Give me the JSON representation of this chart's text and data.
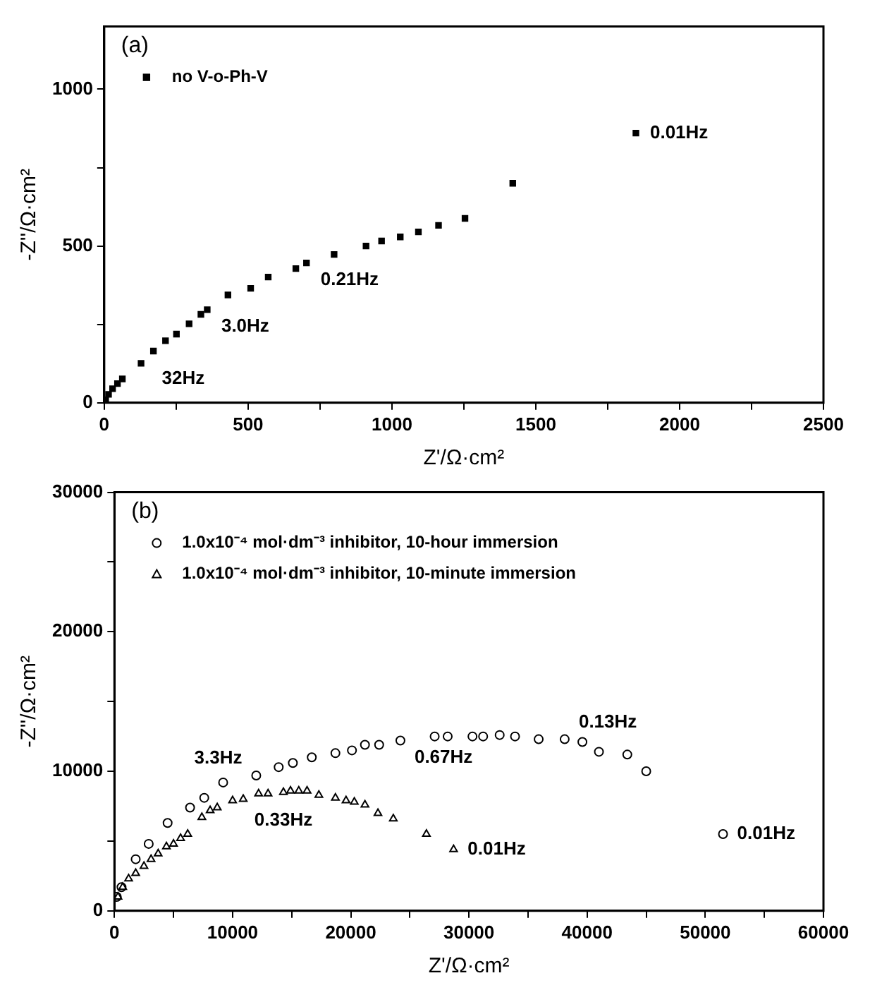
{
  "chart_data": [
    {
      "type": "scatter",
      "xlabel": "Z'/Ω·cm²",
      "ylabel": "-Z''/Ω·cm²",
      "xlim": [
        0,
        2500
      ],
      "ylim": [
        0,
        1200
      ],
      "xticks": [
        0,
        {
          "value": 250,
          "label": null
        },
        500,
        {
          "value": 750,
          "label": null
        },
        1000,
        {
          "value": 1250,
          "label": null
        },
        1500,
        {
          "value": 1750,
          "label": null
        },
        2000,
        {
          "value": 2250,
          "label": null
        },
        2500
      ],
      "yticks": [
        0,
        {
          "value": 250,
          "label": null
        },
        500,
        {
          "value": 750,
          "label": null
        },
        1000
      ],
      "grid": false,
      "legend": "top left",
      "series": [
        {
          "name": "no V-o-Ph-V",
          "color": "#000000",
          "marker": "square",
          "x": [
            1848,
            1420,
            1254,
            1162,
            1092,
            1029,
            964,
            910,
            799,
            703,
            666,
            570,
            509,
            430,
            358,
            336,
            295,
            251,
            213,
            171,
            128,
            63,
            46,
            29,
            15,
            5
          ],
          "values": [
            860,
            700,
            588,
            566,
            545,
            529,
            516,
            500,
            473,
            446,
            428,
            401,
            365,
            344,
            297,
            282,
            252,
            219,
            198,
            165,
            126,
            76,
            61,
            45,
            27,
            9
          ]
        }
      ],
      "annotations": [
        "(a)",
        {
          "text": "0.01Hz",
          "x": 1848,
          "y": 860
        },
        {
          "text": "3.0Hz",
          "x": 358,
          "y": 297
        },
        {
          "text": "0.21Hz",
          "x": 703,
          "y": 446
        },
        {
          "text": "32Hz",
          "x": 63,
          "y": 76
        }
      ]
    },
    {
      "type": "scatter",
      "xlabel": "Z'/Ω·cm²",
      "ylabel": "-Z''/Ω·cm²",
      "xlim": [
        0,
        60000
      ],
      "ylim": [
        0,
        30000
      ],
      "xticks": [
        0,
        {
          "value": 5000,
          "label": null
        },
        10000,
        {
          "value": 15000,
          "label": null
        },
        20000,
        {
          "value": 25000,
          "label": null
        },
        30000,
        {
          "value": 35000,
          "label": null
        },
        40000,
        {
          "value": 45000,
          "label": null
        },
        50000,
        {
          "value": 55000,
          "label": null
        },
        60000
      ],
      "yticks": [
        0,
        {
          "value": 5000,
          "label": null
        },
        10000,
        {
          "value": 15000,
          "label": null
        },
        20000,
        {
          "value": 25000,
          "label": null
        },
        30000
      ],
      "grid": false,
      "legend": "top left",
      "series": [
        {
          "name": "1.0x10⁻⁴ mol·dm⁻³ inhibitor, 10-hour immersion",
          "color": "#000000",
          "marker": "circle",
          "x": [
            51500,
            45000,
            43400,
            41000,
            39600,
            38100,
            35900,
            33900,
            32600,
            31200,
            30300,
            28200,
            27100,
            24200,
            22400,
            21200,
            20100,
            18700,
            16700,
            15100,
            13900,
            12000,
            9200,
            7600,
            6400,
            4500,
            2900,
            1800,
            600,
            200
          ],
          "values": [
            5500,
            10000,
            11200,
            11400,
            12100,
            12300,
            12300,
            12500,
            12600,
            12500,
            12500,
            12500,
            12500,
            12200,
            11900,
            11900,
            11500,
            11300,
            11000,
            10600,
            10300,
            9700,
            9200,
            8100,
            7400,
            6300,
            4800,
            3700,
            1700,
            1000
          ]
        },
        {
          "name": "1.0x10⁻⁴ mol·dm⁻³ inhibitor, 10-minute immersion",
          "color": "#000000",
          "marker": "triangle",
          "x": [
            28700,
            26400,
            23600,
            22300,
            21200,
            20300,
            19600,
            18700,
            17300,
            16300,
            15600,
            14900,
            14300,
            13000,
            12200,
            10900,
            10000,
            8700,
            8100,
            7400,
            6200,
            5600,
            5000,
            4400,
            3700,
            3100,
            2500,
            1800,
            1200,
            700,
            300
          ],
          "values": [
            4400,
            5500,
            6600,
            7000,
            7600,
            7800,
            7900,
            8100,
            8300,
            8600,
            8600,
            8600,
            8500,
            8400,
            8400,
            8000,
            7900,
            7400,
            7200,
            6700,
            5500,
            5200,
            4800,
            4600,
            4100,
            3700,
            3200,
            2700,
            2300,
            1700,
            1000
          ]
        }
      ],
      "annotations": [
        "(b)",
        {
          "text": "3.3Hz",
          "x": 12000,
          "y": 9700
        },
        {
          "text": "0.67Hz",
          "x": 24200,
          "y": 12200
        },
        {
          "text": "0.13Hz",
          "x": 38100,
          "y": 12300
        },
        {
          "text": "0.33Hz",
          "x": 14300,
          "y": 8500
        },
        {
          "text": "0.01Hz",
          "x": 28700,
          "y": 4400
        },
        {
          "text": "0.01Hz",
          "x": 51500,
          "y": 5500
        }
      ]
    }
  ]
}
